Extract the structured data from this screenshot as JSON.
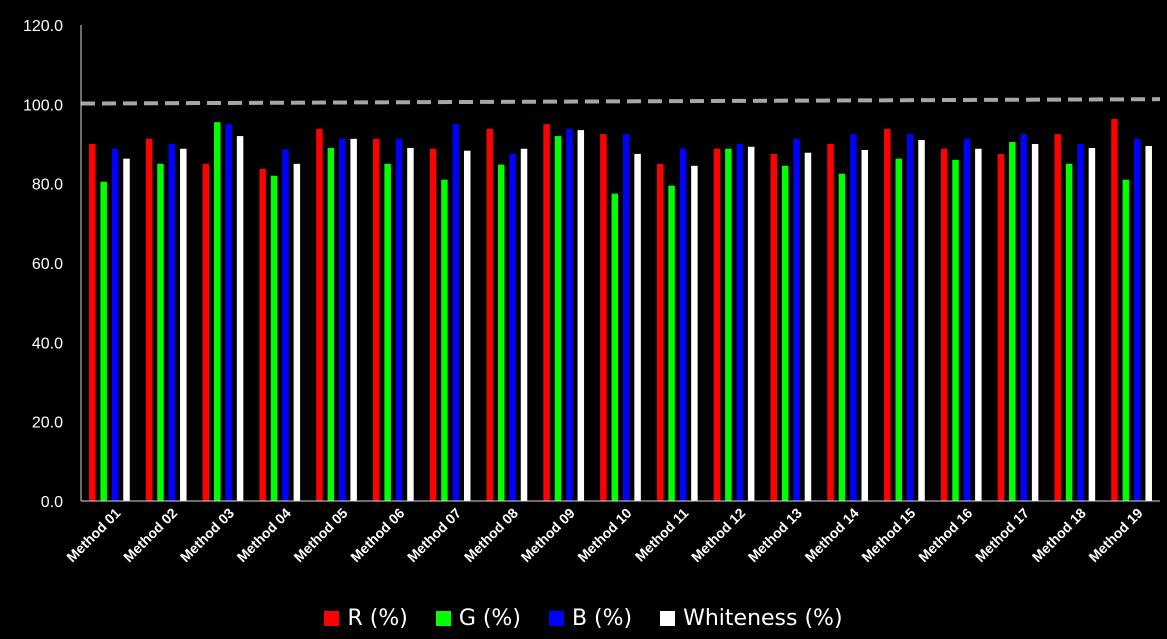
{
  "colors": {
    "background": "#000000",
    "r": "#ff0000",
    "g": "#00ff00",
    "b": "#0000ff",
    "whiteness": "#ffffff",
    "reference_line": "#a6a6a6"
  },
  "chart_data": {
    "type": "bar",
    "title": "",
    "xlabel": "",
    "ylabel": "",
    "ylim": [
      0,
      120
    ],
    "yticks": [
      "0.0",
      "20.0",
      "40.0",
      "60.0",
      "80.0",
      "100.0",
      "120.0"
    ],
    "grid": false,
    "legend_position": "bottom",
    "categories": [
      "Method 01",
      "Method 02",
      "Method 03",
      "Method 04",
      "Method 05",
      "Method 06",
      "Method 07",
      "Method 08",
      "Method 09",
      "Method 10",
      "Method 11",
      "Method 12",
      "Method 13",
      "Method 14",
      "Method 15",
      "Method 16",
      "Method 17",
      "Method 18",
      "Method 19"
    ],
    "series": [
      {
        "name": "R (%)",
        "color": "#ff0000",
        "values": [
          90.0,
          91.3,
          85.0,
          83.7,
          93.8,
          91.3,
          88.8,
          93.8,
          95.0,
          92.5,
          85.0,
          88.8,
          87.5,
          90.0,
          93.8,
          88.8,
          87.5,
          92.5,
          96.3
        ]
      },
      {
        "name": "G (%)",
        "color": "#00ff00",
        "values": [
          80.5,
          85.0,
          95.5,
          82.0,
          89.0,
          85.0,
          81.0,
          84.8,
          92.0,
          77.5,
          79.5,
          88.8,
          84.5,
          82.5,
          86.3,
          86.0,
          90.5,
          85.0,
          81.0
        ]
      },
      {
        "name": "B (%)",
        "color": "#0000ff",
        "values": [
          88.8,
          90.0,
          95.0,
          88.7,
          91.3,
          91.3,
          95.0,
          87.5,
          93.8,
          92.5,
          88.8,
          90.0,
          91.3,
          92.5,
          92.5,
          91.3,
          92.5,
          90.0,
          91.3
        ]
      },
      {
        "name": "Whiteness (%)",
        "color": "#ffffff",
        "values": [
          86.3,
          88.8,
          92.0,
          85.0,
          91.3,
          89.0,
          88.3,
          88.8,
          93.5,
          87.5,
          84.5,
          89.3,
          87.8,
          88.5,
          91.0,
          88.8,
          90.0,
          89.0,
          89.5
        ]
      }
    ],
    "reference_line": {
      "style": "dashed",
      "start": 100.2,
      "end": 101.3
    }
  }
}
